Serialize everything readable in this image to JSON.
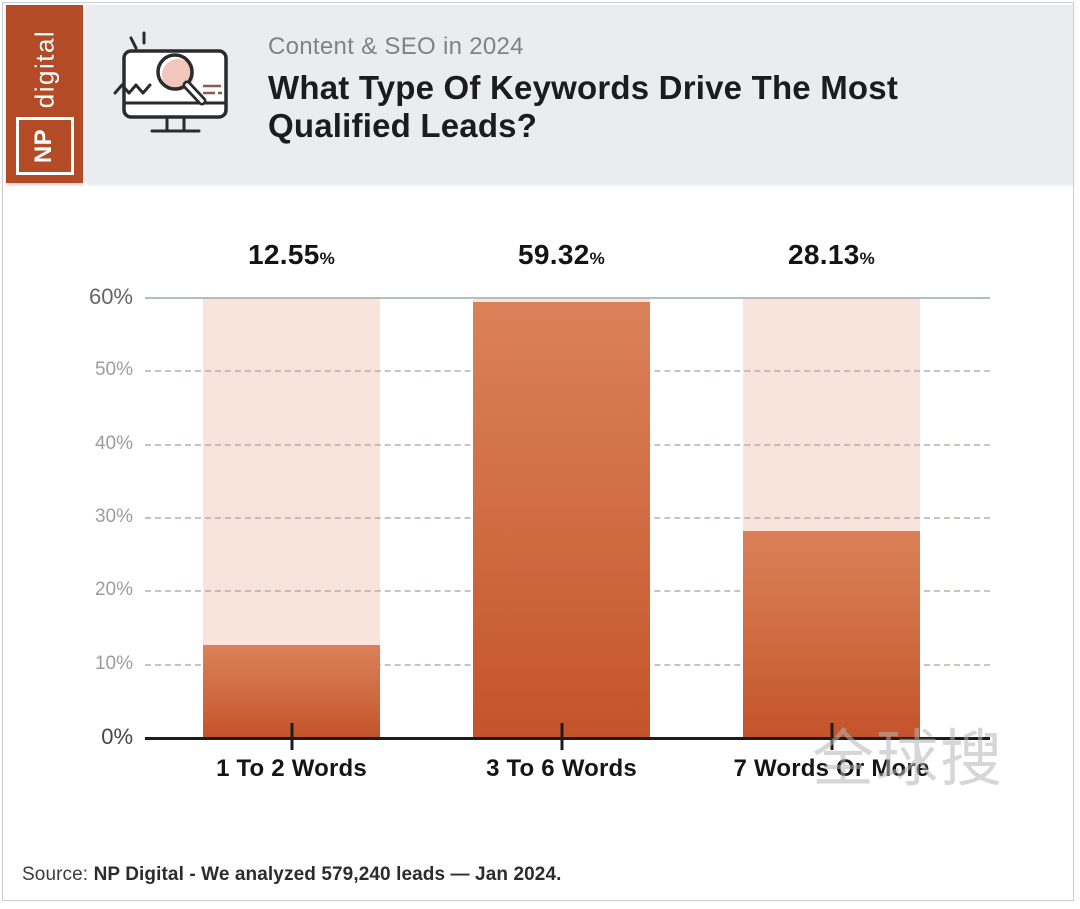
{
  "logo": {
    "digital": "digital",
    "np": "NP",
    "brand_color": "#b24b26"
  },
  "header": {
    "kicker": "Content & SEO in 2024",
    "title": "What Type Of Keywords Drive The Most Qualified Leads?",
    "title_lines": [
      "What Type Of Keywords Drive The Most",
      "Qualified Leads?"
    ],
    "icon": "monitor-with-magnifying-glass-icon",
    "background_color": "#ebeced"
  },
  "chart_data": {
    "type": "bar",
    "title": "What Type Of Keywords Drive The Most Qualified Leads?",
    "categories": [
      "1 To 2 Words",
      "3 To 6 Words",
      "7 Words Or More"
    ],
    "values": [
      12.55,
      59.32,
      28.13
    ],
    "value_labels": [
      "12.55%",
      "59.32%",
      "28.13%"
    ],
    "percent_sign": "%",
    "xlabel": "",
    "ylabel": "",
    "y_ticks": [
      "60%",
      "50%",
      "40%",
      "30%",
      "20%",
      "10%",
      "0%"
    ],
    "ylim": [
      0,
      60
    ],
    "grid": "horizontal dashed, solid top line at 60%",
    "legend": "none",
    "colors": {
      "bar_fill_gradient_top": "#db8159",
      "bar_fill_gradient_bottom": "#c4532b",
      "bar_background_track": "#f9e4db",
      "axis_line": "#1c1c1c",
      "gridline_dashed": "#b9aea8"
    }
  },
  "watermark": "全球搜",
  "source": {
    "prefix": "Source:",
    "text": "NP Digital - We analyzed 579,240 leads — Jan 2024."
  }
}
